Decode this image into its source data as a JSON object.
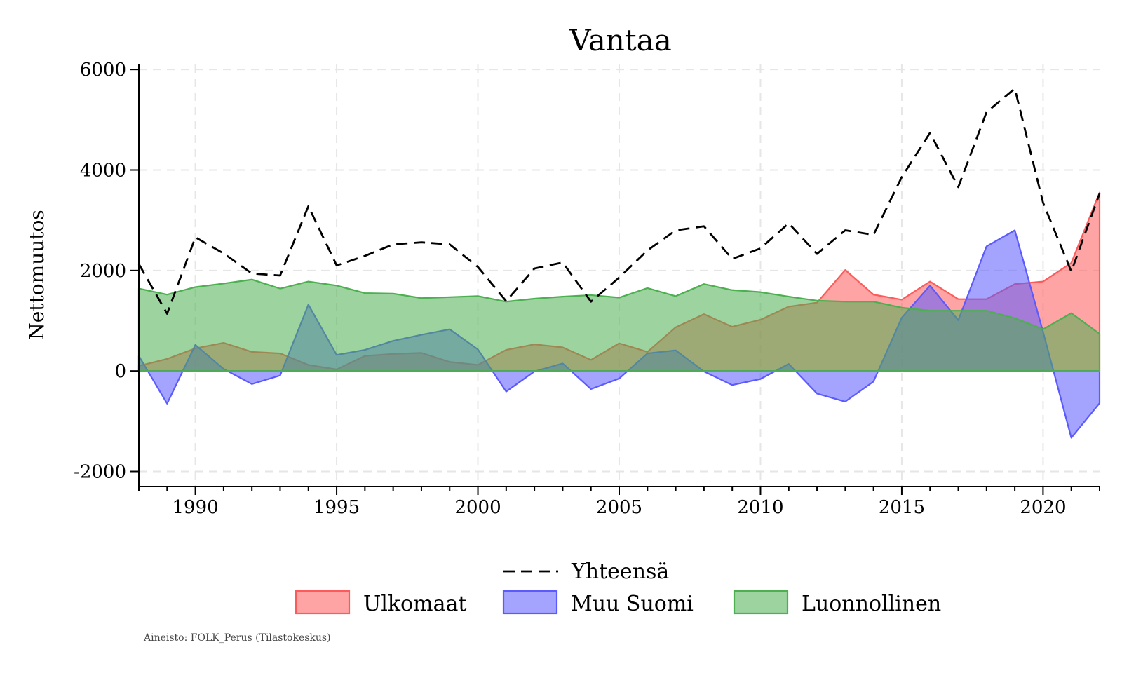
{
  "chart_data": {
    "type": "area",
    "title": "Vantaa",
    "xlabel": "",
    "ylabel": "Nettomuutos",
    "xlim": [
      1988,
      2022
    ],
    "ylim": [
      -2300,
      6100
    ],
    "xticks": [
      1990,
      1995,
      2000,
      2005,
      2010,
      2015,
      2020
    ],
    "yticks": [
      -2000,
      0,
      2000,
      4000,
      6000
    ],
    "ytick_labels": [
      "-2000",
      "0",
      "2000",
      "4000",
      "6000"
    ],
    "grid": true,
    "x": [
      1988,
      1989,
      1990,
      1991,
      1992,
      1993,
      1994,
      1995,
      1996,
      1997,
      1998,
      1999,
      2000,
      2001,
      2002,
      2003,
      2004,
      2005,
      2006,
      2007,
      2008,
      2009,
      2010,
      2011,
      2012,
      2013,
      2014,
      2015,
      2016,
      2017,
      2018,
      2019,
      2020,
      2021,
      2022
    ],
    "series": [
      {
        "name": "Ulkomaat",
        "kind": "area",
        "color": "#ff5a5a",
        "values": [
          100,
          240,
          450,
          560,
          380,
          350,
          120,
          30,
          300,
          340,
          360,
          180,
          120,
          420,
          530,
          470,
          220,
          550,
          380,
          870,
          1130,
          880,
          1020,
          1280,
          1360,
          2010,
          1520,
          1420,
          1780,
          1430,
          1430,
          1730,
          1780,
          2150,
          3550
        ]
      },
      {
        "name": "Muu Suomi",
        "kind": "area",
        "color": "#5a5aff",
        "values": [
          300,
          -650,
          520,
          40,
          -260,
          -90,
          1320,
          320,
          420,
          600,
          720,
          830,
          430,
          -410,
          -10,
          150,
          -360,
          -150,
          350,
          410,
          -10,
          -280,
          -160,
          140,
          -450,
          -610,
          -210,
          1060,
          1700,
          1010,
          2480,
          2800,
          780,
          -1330,
          -640
        ]
      },
      {
        "name": "Luonnollinen",
        "kind": "area",
        "color": "#4caf50",
        "values": [
          1640,
          1520,
          1670,
          1740,
          1820,
          1640,
          1780,
          1700,
          1550,
          1540,
          1450,
          1470,
          1490,
          1380,
          1440,
          1480,
          1510,
          1460,
          1650,
          1490,
          1730,
          1610,
          1570,
          1480,
          1400,
          1380,
          1380,
          1260,
          1200,
          1200,
          1200,
          1050,
          830,
          1150,
          740
        ]
      },
      {
        "name": "Yhteensä",
        "kind": "line",
        "style": "dashed",
        "color": "#000000",
        "values": [
          2130,
          1140,
          2660,
          2340,
          1940,
          1900,
          3280,
          2100,
          2290,
          2520,
          2560,
          2520,
          2070,
          1390,
          2040,
          2160,
          1380,
          1860,
          2400,
          2800,
          2880,
          2230,
          2440,
          2940,
          2330,
          2800,
          2710,
          3860,
          4740,
          3660,
          5150,
          5620,
          3350,
          1980,
          3530
        ]
      }
    ],
    "legend": {
      "placement": "bottom",
      "line_entries": [
        "Yhteensä"
      ],
      "area_entries": [
        "Ulkomaat",
        "Muu Suomi",
        "Luonnollinen"
      ]
    }
  },
  "source_note": "Aineisto: FOLK_Perus (Tilastokeskus)"
}
